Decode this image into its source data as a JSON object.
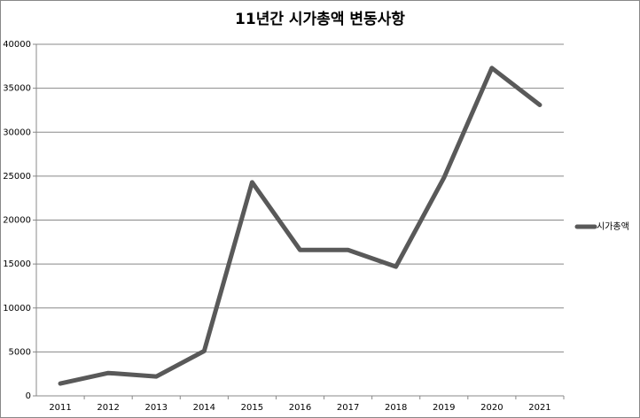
{
  "chart_data": {
    "type": "line",
    "title": "11년간 시가총액 변동사항",
    "categories": [
      "2011",
      "2012",
      "2013",
      "2014",
      "2015",
      "2016",
      "2017",
      "2018",
      "2019",
      "2020",
      "2021"
    ],
    "series": [
      {
        "name": "시가총액",
        "color": "#595959",
        "values": [
          1400,
          2600,
          2200,
          5100,
          24300,
          16600,
          16600,
          14700,
          24800,
          37300,
          33100
        ]
      }
    ],
    "ylim": [
      0,
      40000
    ],
    "yticks": [
      0,
      5000,
      10000,
      15000,
      20000,
      25000,
      30000,
      35000,
      40000
    ],
    "grid": true,
    "legend": "right"
  }
}
